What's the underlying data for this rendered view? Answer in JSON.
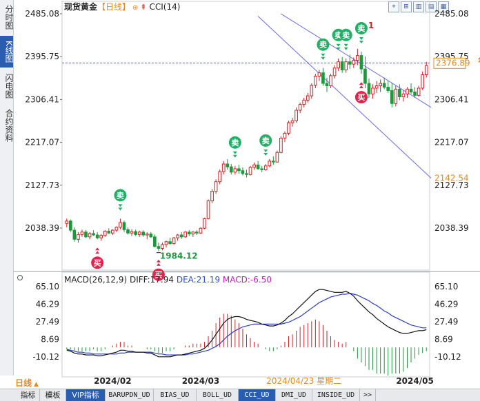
{
  "sidebar": {
    "tabs": [
      {
        "label": "分时图",
        "active": false
      },
      {
        "label": "K线图",
        "active": true
      },
      {
        "label": "闪电图",
        "active": false
      },
      {
        "label": "合约资料",
        "active": false
      }
    ]
  },
  "header": {
    "title": "现货黄金",
    "period": "【日线】",
    "indicator": "CCI(14)",
    "tool_buttons": [
      "⌖",
      "⊞",
      "▥",
      "▤",
      "▦"
    ]
  },
  "macd_legend": {
    "label": "MACD(26,12,9)",
    "diff": "DIFF:17.94",
    "dea": "DEA:21.19",
    "macd": "MACD:-6.50"
  },
  "colors": {
    "up": "#d22222",
    "down": "#1a9a3a",
    "buy_marker": "#e8204a",
    "sell_marker": "#22b066",
    "channel": "#6a6ae8",
    "current_price_line": "#2a8aa8",
    "diff_line": "#111111",
    "dea_line": "#2a3cc8",
    "period_orange": "#e8891e"
  },
  "chart_data": [
    {
      "type": "candlestick",
      "title": "现货黄金 日线",
      "y_ticks": [
        "2485.08",
        "2395.75",
        "2306.41",
        "2217.07",
        "2127.73",
        "2038.39"
      ],
      "ylim": [
        1980,
        2485.08
      ],
      "x_labels": [
        "2024/02",
        "2024/03",
        "2024/04/23 星期二",
        "2024/05"
      ],
      "current_price_label": "2376.89",
      "channel_price_label": "2142.54",
      "low_annotation": "1984.12",
      "high_annotation": "1",
      "buy_label": "买",
      "sell_label": "卖",
      "ohlc": [
        [
          2048,
          2058,
          2040,
          2053
        ],
        [
          2053,
          2056,
          2030,
          2034
        ],
        [
          2034,
          2040,
          2010,
          2015
        ],
        [
          2015,
          2030,
          2008,
          2025
        ],
        [
          2025,
          2035,
          2020,
          2030
        ],
        [
          2030,
          2034,
          2018,
          2020
        ],
        [
          2020,
          2030,
          2015,
          2027
        ],
        [
          2027,
          2034,
          2022,
          2024
        ],
        [
          2024,
          2030,
          2015,
          2018
        ],
        [
          2018,
          2026,
          2012,
          2023
        ],
        [
          2023,
          2034,
          2020,
          2032
        ],
        [
          2032,
          2038,
          2026,
          2028
        ],
        [
          2028,
          2036,
          2024,
          2034
        ],
        [
          2034,
          2042,
          2030,
          2040
        ],
        [
          2040,
          2058,
          2036,
          2050
        ],
        [
          2050,
          2054,
          2030,
          2035
        ],
        [
          2035,
          2040,
          2025,
          2028
        ],
        [
          2028,
          2036,
          2022,
          2031
        ],
        [
          2031,
          2035,
          2022,
          2025
        ],
        [
          2025,
          2033,
          2020,
          2030
        ],
        [
          2030,
          2034,
          2020,
          2024
        ],
        [
          2024,
          2030,
          2015,
          2026
        ],
        [
          2026,
          2030,
          2018,
          2020
        ],
        [
          2020,
          2025,
          1998,
          2000
        ],
        [
          2000,
          2008,
          1990,
          1996
        ],
        [
          1996,
          2008,
          1992,
          2004
        ],
        [
          2004,
          2012,
          1998,
          2010
        ],
        [
          2010,
          2018,
          2004,
          2006
        ],
        [
          2006,
          2020,
          2004,
          2018
        ],
        [
          2018,
          2026,
          2012,
          2024
        ],
        [
          2024,
          2030,
          2016,
          2020
        ],
        [
          2020,
          2032,
          2018,
          2030
        ],
        [
          2030,
          2034,
          2022,
          2026
        ],
        [
          2026,
          2032,
          2020,
          2030
        ],
        [
          2030,
          2034,
          2024,
          2028
        ],
        [
          2028,
          2040,
          2026,
          2038
        ],
        [
          2038,
          2060,
          2036,
          2058
        ],
        [
          2058,
          2098,
          2056,
          2095
        ],
        [
          2095,
          2120,
          2090,
          2115
        ],
        [
          2115,
          2140,
          2110,
          2135
        ],
        [
          2135,
          2160,
          2130,
          2156
        ],
        [
          2156,
          2178,
          2150,
          2172
        ],
        [
          2172,
          2182,
          2160,
          2166
        ],
        [
          2166,
          2172,
          2150,
          2155
        ],
        [
          2155,
          2168,
          2150,
          2162
        ],
        [
          2162,
          2170,
          2152,
          2158
        ],
        [
          2158,
          2165,
          2148,
          2152
        ],
        [
          2152,
          2160,
          2144,
          2150
        ],
        [
          2150,
          2168,
          2148,
          2165
        ],
        [
          2165,
          2175,
          2160,
          2170
        ],
        [
          2170,
          2178,
          2160,
          2162
        ],
        [
          2162,
          2168,
          2155,
          2160
        ],
        [
          2160,
          2172,
          2158,
          2168
        ],
        [
          2168,
          2182,
          2165,
          2178
        ],
        [
          2178,
          2188,
          2170,
          2176
        ],
        [
          2176,
          2200,
          2175,
          2196
        ],
        [
          2196,
          2230,
          2194,
          2226
        ],
        [
          2226,
          2240,
          2218,
          2236
        ],
        [
          2236,
          2262,
          2232,
          2258
        ],
        [
          2258,
          2268,
          2250,
          2262
        ],
        [
          2262,
          2290,
          2258,
          2284
        ],
        [
          2284,
          2300,
          2278,
          2296
        ],
        [
          2296,
          2310,
          2290,
          2305
        ],
        [
          2305,
          2320,
          2300,
          2314
        ],
        [
          2314,
          2340,
          2308,
          2336
        ],
        [
          2336,
          2360,
          2330,
          2355
        ],
        [
          2355,
          2368,
          2345,
          2362
        ],
        [
          2362,
          2372,
          2335,
          2340
        ],
        [
          2340,
          2352,
          2322,
          2335
        ],
        [
          2335,
          2360,
          2330,
          2356
        ],
        [
          2356,
          2378,
          2350,
          2372
        ],
        [
          2372,
          2392,
          2366,
          2385
        ],
        [
          2385,
          2395,
          2362,
          2368
        ],
        [
          2368,
          2392,
          2362,
          2385
        ],
        [
          2385,
          2400,
          2370,
          2380
        ],
        [
          2380,
          2394,
          2372,
          2388
        ],
        [
          2388,
          2412,
          2378,
          2398
        ],
        [
          2398,
          2406,
          2360,
          2370
        ],
        [
          2370,
          2396,
          2330,
          2340
        ],
        [
          2340,
          2350,
          2310,
          2318
        ],
        [
          2318,
          2338,
          2308,
          2330
        ],
        [
          2330,
          2345,
          2320,
          2335
        ],
        [
          2335,
          2348,
          2322,
          2340
        ],
        [
          2340,
          2352,
          2328,
          2332
        ],
        [
          2332,
          2345,
          2320,
          2325
        ],
        [
          2325,
          2340,
          2290,
          2298
        ],
        [
          2298,
          2335,
          2292,
          2328
        ],
        [
          2328,
          2338,
          2305,
          2312
        ],
        [
          2312,
          2325,
          2302,
          2318
        ],
        [
          2318,
          2332,
          2310,
          2328
        ],
        [
          2328,
          2340,
          2318,
          2322
        ],
        [
          2322,
          2332,
          2310,
          2315
        ],
        [
          2315,
          2335,
          2312,
          2330
        ],
        [
          2330,
          2365,
          2326,
          2358
        ],
        [
          2358,
          2385,
          2352,
          2377
        ]
      ],
      "buy_signals": [
        8,
        24,
        77
      ],
      "sell_signals": [
        14,
        44,
        52,
        67,
        71,
        73,
        77
      ]
    },
    {
      "type": "macd",
      "y_ticks": [
        "65.10",
        "46.29",
        "27.49",
        "8.69",
        "-10.12"
      ],
      "ylim": [
        -20,
        72
      ],
      "diff": [
        -3,
        -4,
        -6,
        -7,
        -7,
        -8,
        -8,
        -8,
        -9,
        -9,
        -8,
        -7,
        -6,
        -5,
        -3,
        -3,
        -4,
        -4,
        -5,
        -5,
        -5,
        -6,
        -6,
        -8,
        -10,
        -10,
        -10,
        -10,
        -9,
        -8,
        -8,
        -7,
        -6,
        -5,
        -4,
        -3,
        -1,
        3,
        8,
        14,
        20,
        26,
        30,
        32,
        33,
        33,
        32,
        30,
        29,
        28,
        27,
        25,
        24,
        23,
        23,
        24,
        26,
        29,
        33,
        36,
        40,
        44,
        48,
        52,
        56,
        60,
        62,
        62,
        61,
        60,
        59,
        59,
        59,
        60,
        58,
        55,
        50,
        46,
        42,
        38,
        35,
        31,
        28,
        25,
        22,
        20,
        18,
        16,
        15,
        15,
        16,
        17,
        18,
        18,
        19
      ],
      "dea": [
        -2,
        -3,
        -4,
        -5,
        -5,
        -6,
        -6,
        -7,
        -7,
        -7,
        -7,
        -7,
        -7,
        -7,
        -6,
        -6,
        -5,
        -5,
        -5,
        -5,
        -5,
        -5,
        -5,
        -6,
        -7,
        -7,
        -8,
        -8,
        -8,
        -8,
        -8,
        -8,
        -7,
        -7,
        -6,
        -5,
        -4,
        -3,
        -1,
        1,
        4,
        8,
        12,
        15,
        18,
        20,
        22,
        23,
        24,
        25,
        25,
        25,
        25,
        25,
        25,
        25,
        25,
        26,
        27,
        29,
        31,
        33,
        36,
        39,
        42,
        45,
        48,
        50,
        52,
        54,
        55,
        56,
        57,
        57,
        58,
        57,
        56,
        54,
        52,
        50,
        47,
        45,
        42,
        39,
        37,
        34,
        32,
        30,
        28,
        26,
        24,
        23,
        22,
        21,
        21
      ],
      "macd": [
        -2,
        -2,
        -4,
        -4,
        -4,
        -4,
        -4,
        -2,
        -4,
        -4,
        -2,
        0,
        2,
        4,
        6,
        6,
        2,
        2,
        0,
        0,
        0,
        -2,
        -2,
        -4,
        -6,
        -6,
        -4,
        -4,
        -2,
        0,
        0,
        2,
        2,
        4,
        4,
        4,
        6,
        12,
        18,
        26,
        32,
        36,
        36,
        34,
        30,
        26,
        20,
        14,
        10,
        6,
        4,
        0,
        -2,
        -4,
        -4,
        -2,
        2,
        6,
        12,
        14,
        18,
        22,
        24,
        26,
        28,
        30,
        28,
        24,
        18,
        12,
        8,
        6,
        4,
        6,
        0,
        -4,
        -12,
        -16,
        -20,
        -24,
        -24,
        -28,
        -28,
        -28,
        -30,
        -28,
        -28,
        -28,
        -26,
        -22,
        -16,
        -12,
        -8,
        -6,
        -4
      ]
    }
  ],
  "period_tab": {
    "label": "日线"
  },
  "bottom_tabs": [
    {
      "label": "指标",
      "active": false,
      "mono": false
    },
    {
      "label": "模板",
      "active": false,
      "mono": false
    },
    {
      "label": "VIP指标",
      "active": true,
      "mono": false
    },
    {
      "label": "BARUPDN_UD",
      "active": false,
      "mono": true
    },
    {
      "label": "BIAS_UD",
      "active": false,
      "mono": true
    },
    {
      "label": "BOLL_UD",
      "active": false,
      "mono": true
    },
    {
      "label": "CCI_UD",
      "active": true,
      "mono": true
    },
    {
      "label": "DMI_UD",
      "active": false,
      "mono": true
    },
    {
      "label": "INSIDE_UD",
      "active": false,
      "mono": true
    },
    {
      "label": ">>",
      "active": false,
      "mono": true
    }
  ]
}
